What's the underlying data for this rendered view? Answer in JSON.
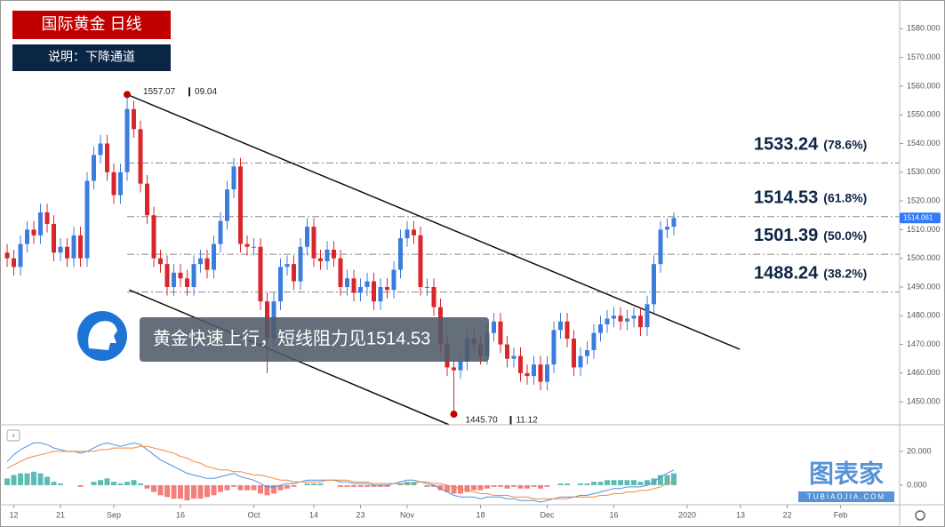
{
  "header": {
    "title": "国际黄金 日线",
    "subtitle": "说明：下降通道"
  },
  "annotation": "黄金快速上行，短线阻力见1514.53",
  "watermark": {
    "name": "图表家",
    "site": "TUBIAOJIA.COM"
  },
  "chart_data": [
    {
      "type": "candlestick",
      "up_color": "#3b7ddd",
      "down_color": "#d8262c",
      "open": [
        1502,
        1500,
        1497,
        1505,
        1510,
        1508,
        1516,
        1512,
        1502,
        1504,
        1500,
        1508,
        1500,
        1527,
        1536,
        1540,
        1530,
        1522,
        1530,
        1552,
        1545,
        1526,
        1515,
        1500,
        1498,
        1490,
        1495,
        1493,
        1490,
        1498,
        1500,
        1496,
        1505,
        1513,
        1524,
        1532,
        1505,
        1504,
        1504,
        1485,
        1472,
        1485,
        1497,
        1498,
        1492,
        1504,
        1511,
        1500,
        1499,
        1503,
        1500,
        1490,
        1493,
        1488,
        1490,
        1492,
        1485,
        1490,
        1489,
        1496,
        1507,
        1510,
        1508,
        1490,
        1490,
        1483,
        1470,
        1462,
        1461,
        1464,
        1472,
        1470,
        1466,
        1474,
        1478,
        1470,
        1465,
        1466,
        1460,
        1459,
        1463,
        1457,
        1463,
        1475,
        1478,
        1472,
        1462,
        1466,
        1468,
        1474,
        1477,
        1479,
        1480,
        1478,
        1479,
        1480,
        1476,
        1484,
        1498,
        1510,
        1511
      ],
      "high": [
        1505,
        1503,
        1508,
        1513,
        1513,
        1519,
        1519,
        1515,
        1507,
        1507,
        1511,
        1511,
        1530,
        1539,
        1543,
        1543,
        1533,
        1533,
        1557.07,
        1555,
        1548,
        1529,
        1518,
        1503,
        1501,
        1498,
        1498,
        1496,
        1501,
        1503,
        1503,
        1508,
        1516,
        1527,
        1535,
        1535,
        1508,
        1507,
        1507,
        1488,
        1488,
        1500,
        1501,
        1501,
        1507,
        1514,
        1514,
        1503,
        1506,
        1506,
        1503,
        1496,
        1496,
        1493,
        1495,
        1495,
        1493,
        1493,
        1499,
        1510,
        1513,
        1513,
        1511,
        1493,
        1493,
        1486,
        1473,
        1465,
        1467,
        1475,
        1475,
        1473,
        1477,
        1481,
        1481,
        1473,
        1469,
        1469,
        1463,
        1466,
        1466,
        1466,
        1478,
        1481,
        1481,
        1475,
        1469,
        1471,
        1477,
        1480,
        1482,
        1483,
        1483,
        1482,
        1483,
        1483,
        1487,
        1501,
        1513,
        1514,
        1516
      ],
      "low": [
        1497,
        1494,
        1494,
        1502,
        1505,
        1505,
        1509,
        1499,
        1499,
        1497,
        1497,
        1497,
        1497,
        1524,
        1533,
        1527,
        1519,
        1519,
        1527,
        1542,
        1523,
        1512,
        1497,
        1495,
        1487,
        1487,
        1490,
        1487,
        1487,
        1495,
        1493,
        1493,
        1502,
        1510,
        1521,
        1502,
        1501,
        1501,
        1482,
        1460,
        1469,
        1482,
        1494,
        1489,
        1489,
        1501,
        1497,
        1496,
        1496,
        1497,
        1487,
        1487,
        1485,
        1485,
        1487,
        1482,
        1482,
        1486,
        1486,
        1493,
        1504,
        1505,
        1487,
        1487,
        1480,
        1467,
        1459,
        1445.7,
        1458,
        1461,
        1467,
        1463,
        1463,
        1471,
        1467,
        1462,
        1462,
        1457,
        1456,
        1456,
        1454,
        1454,
        1460,
        1472,
        1469,
        1459,
        1459,
        1463,
        1465,
        1471,
        1474,
        1476,
        1475,
        1475,
        1476,
        1473,
        1473,
        1481,
        1495,
        1507,
        1508
      ],
      "close": [
        1500,
        1497,
        1505,
        1510,
        1508,
        1516,
        1512,
        1502,
        1504,
        1500,
        1508,
        1500,
        1527,
        1536,
        1540,
        1530,
        1522,
        1530,
        1552,
        1545,
        1526,
        1515,
        1500,
        1498,
        1490,
        1495,
        1493,
        1490,
        1498,
        1500,
        1496,
        1505,
        1513,
        1524,
        1532,
        1505,
        1504,
        1504,
        1485,
        1472,
        1485,
        1497,
        1498,
        1492,
        1504,
        1511,
        1500,
        1499,
        1503,
        1500,
        1490,
        1493,
        1488,
        1490,
        1492,
        1485,
        1490,
        1489,
        1496,
        1507,
        1510,
        1508,
        1490,
        1490,
        1483,
        1470,
        1462,
        1461,
        1464,
        1472,
        1470,
        1466,
        1474,
        1478,
        1470,
        1465,
        1466,
        1460,
        1459,
        1463,
        1457,
        1463,
        1475,
        1478,
        1472,
        1462,
        1466,
        1468,
        1474,
        1477,
        1479,
        1480,
        1478,
        1479,
        1480,
        1476,
        1484,
        1498,
        1510,
        1511,
        1514.06
      ],
      "xlim": [
        -1.07,
        133.87
      ],
      "ylim": [
        1442,
        1590
      ],
      "yticks": [
        {
          "value": 1450,
          "label": "1450.000"
        },
        {
          "value": 1460,
          "label": "1460.000"
        },
        {
          "value": 1470,
          "label": "1470.000"
        },
        {
          "value": 1480,
          "label": "1480.000"
        },
        {
          "value": 1490,
          "label": "1490.000"
        },
        {
          "value": 1500,
          "label": "1500.000"
        },
        {
          "value": 1510,
          "label": "1510.000"
        },
        {
          "value": 1520,
          "label": "1520.000"
        },
        {
          "value": 1530,
          "label": "1530.000"
        },
        {
          "value": 1540,
          "label": "1540.000"
        },
        {
          "value": 1550,
          "label": "1550.000"
        },
        {
          "value": 1560,
          "label": "1560.000"
        },
        {
          "value": 1570,
          "label": "1570.000"
        },
        {
          "value": 1580,
          "label": "1580.000"
        }
      ],
      "last_price": 1514.061,
      "high_marker": {
        "index": 18,
        "price": 1557.07,
        "date": "09.04"
      },
      "low_marker": {
        "index": 67,
        "price": {
          "value": 1445.7,
          "label": "1445.70"
        },
        "date": "11.12"
      },
      "trendlines": [
        {
          "x": [
            18,
            109.9
          ],
          "y": [
            1557.07,
            1468.3
          ]
        },
        {
          "x": [
            18.3,
            66.3
          ],
          "y": [
            1489,
            1442
          ]
        }
      ],
      "fib_levels": [
        {
          "price": 1533.24,
          "ratio": "(78.6%)"
        },
        {
          "price": 1514.53,
          "ratio": "(61.8%)"
        },
        {
          "price": 1501.39,
          "ratio": "(50.0%)"
        },
        {
          "price": 1488.24,
          "ratio": "(38.2%)"
        }
      ]
    },
    {
      "type": "macd",
      "xlim": [
        -1.07,
        133.87
      ],
      "ylim": [
        -11.6,
        34.7
      ],
      "yticks": [
        {
          "value": 0,
          "label": "0.000"
        },
        {
          "value": 20,
          "label": "20.000"
        }
      ],
      "series": [
        {
          "color": "#4a90e2",
          "values": [
            14,
            18,
            21,
            23,
            25,
            25,
            24,
            22,
            21,
            20,
            20,
            19,
            20,
            22,
            24,
            25,
            24,
            23,
            24,
            25,
            24,
            21,
            18,
            15,
            13,
            11,
            9,
            7,
            6,
            5,
            4,
            4,
            5,
            6,
            7,
            5,
            4,
            3,
            1,
            -1,
            -1,
            0,
            1,
            1,
            2,
            3,
            3,
            3,
            3,
            3,
            2,
            2,
            1,
            1,
            1,
            0,
            0,
            0,
            1,
            2,
            3,
            3,
            2,
            1,
            0,
            -2,
            -4,
            -6,
            -7,
            -7,
            -7,
            -8,
            -7,
            -7,
            -7,
            -8,
            -8,
            -9,
            -9,
            -9,
            -10,
            -9,
            -8,
            -7,
            -7,
            -7,
            -6,
            -6,
            -5,
            -4,
            -3,
            -2,
            -2,
            -1,
            -1,
            -1,
            0,
            2,
            5,
            7,
            9
          ]
        },
        {
          "color": "#f0883e",
          "values": [
            10,
            12,
            14,
            16,
            17,
            18,
            19,
            20,
            20,
            20,
            20,
            20,
            20,
            20,
            21,
            21,
            22,
            22,
            22,
            22,
            23,
            23,
            22,
            21,
            20,
            19,
            17,
            16,
            14,
            13,
            11,
            10,
            9,
            9,
            8,
            8,
            7,
            6,
            6,
            5,
            4,
            3,
            3,
            2,
            2,
            2,
            2,
            2,
            3,
            3,
            3,
            3,
            2,
            2,
            2,
            1,
            1,
            1,
            1,
            1,
            1,
            1,
            2,
            2,
            1,
            1,
            0,
            -1,
            -2,
            -3,
            -4,
            -5,
            -5,
            -6,
            -6,
            -6,
            -7,
            -7,
            -7,
            -8,
            -8,
            -8,
            -8,
            -8,
            -8,
            -7,
            -7,
            -7,
            -7,
            -6,
            -6,
            -5,
            -5,
            -4,
            -4,
            -3,
            -3,
            -2,
            -1,
            1,
            2
          ]
        }
      ],
      "histogram": {
        "up_color": "#26a69a",
        "down_color": "#ef5350",
        "values": [
          4,
          6,
          7,
          7,
          8,
          7,
          5,
          2,
          1,
          0,
          0,
          -1,
          0,
          2,
          3,
          4,
          2,
          1,
          2,
          3,
          1,
          -2,
          -4,
          -6,
          -7,
          -8,
          -8,
          -9,
          -8,
          -8,
          -7,
          -6,
          -4,
          -3,
          -1,
          -3,
          -3,
          -3,
          -5,
          -6,
          -5,
          -3,
          -2,
          -1,
          0,
          1,
          1,
          1,
          0,
          0,
          -1,
          -1,
          -1,
          -1,
          -1,
          -1,
          -1,
          -1,
          0,
          1,
          2,
          2,
          0,
          -1,
          -1,
          -3,
          -4,
          -5,
          -5,
          -4,
          -3,
          -3,
          -2,
          -1,
          -1,
          -2,
          -1,
          -2,
          -2,
          -1,
          -2,
          -1,
          0,
          1,
          1,
          0,
          1,
          1,
          2,
          2,
          3,
          3,
          3,
          3,
          3,
          2,
          3,
          4,
          6,
          6,
          7
        ]
      },
      "xticks": [
        {
          "value": 1,
          "label": "12"
        },
        {
          "value": 8,
          "label": "21"
        },
        {
          "value": 16,
          "label": "Sep"
        },
        {
          "value": 26,
          "label": "16"
        },
        {
          "value": 37,
          "label": "Oct"
        },
        {
          "value": 46,
          "label": "14"
        },
        {
          "value": 53,
          "label": "23"
        },
        {
          "value": 60,
          "label": "Nov"
        },
        {
          "value": 71,
          "label": "18"
        },
        {
          "value": 81,
          "label": "Dec"
        },
        {
          "value": 91,
          "label": "16"
        },
        {
          "value": 102,
          "label": "2020"
        },
        {
          "value": 110,
          "label": "13"
        },
        {
          "value": 117,
          "label": "22"
        },
        {
          "value": 125,
          "label": "Feb"
        }
      ]
    }
  ]
}
